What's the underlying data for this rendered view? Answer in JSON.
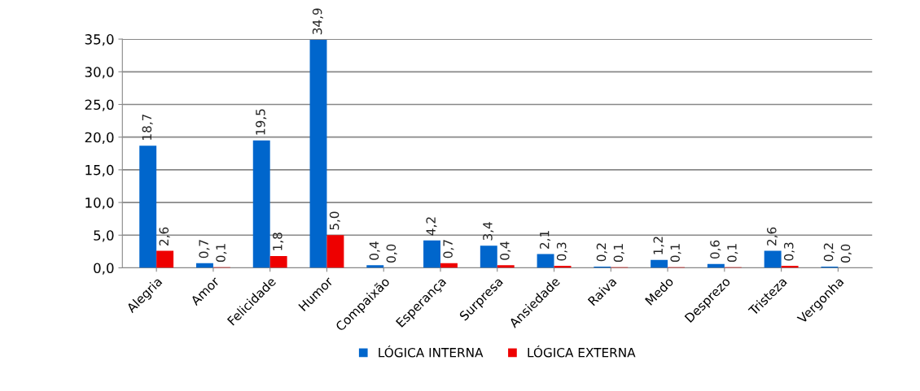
{
  "chart_data": {
    "type": "bar",
    "categories": [
      "Alegria",
      "Amor",
      "Felicidade",
      "Humor",
      "Compaixão",
      "Esperança",
      "Surpresa",
      "Ansiedade",
      "Raiva",
      "Medo",
      "Desprezo",
      "Tristeza",
      "Vergonha"
    ],
    "series": [
      {
        "name": "LÓGICA INTERNA",
        "color": "#0066cc",
        "values": [
          18.7,
          0.7,
          19.5,
          34.9,
          0.4,
          4.2,
          3.4,
          2.1,
          0.2,
          1.2,
          0.6,
          2.6,
          0.2
        ],
        "value_labels": [
          "18,7",
          "0,7",
          "19,5",
          "34,9",
          "0,4",
          "4,2",
          "3,4",
          "2,1",
          "0,2",
          "1,2",
          "0,6",
          "2,6",
          "0,2"
        ]
      },
      {
        "name": "LÓGICA EXTERNA",
        "color": "#ee0000",
        "values": [
          2.6,
          0.1,
          1.8,
          5.0,
          0.0,
          0.7,
          0.4,
          0.3,
          0.1,
          0.1,
          0.1,
          0.3,
          0.0
        ],
        "value_labels": [
          "2,6",
          "0,1",
          "1,8",
          "5,0",
          "0,0",
          "0,7",
          "0,4",
          "0,3",
          "0,1",
          "0,1",
          "0,1",
          "0,3",
          "0,0"
        ]
      }
    ],
    "ylim": [
      0,
      35
    ],
    "yticks": [
      {
        "value": 0,
        "label": "0,0"
      },
      {
        "value": 5,
        "label": "5,0"
      },
      {
        "value": 10,
        "label": "10,0"
      },
      {
        "value": 15,
        "label": "15,0"
      },
      {
        "value": 20,
        "label": "20,0"
      },
      {
        "value": 25,
        "label": "25,0"
      },
      {
        "value": 30,
        "label": "30,0"
      },
      {
        "value": 35,
        "label": "35,0"
      }
    ],
    "grid": "y",
    "legend": "bottom"
  }
}
